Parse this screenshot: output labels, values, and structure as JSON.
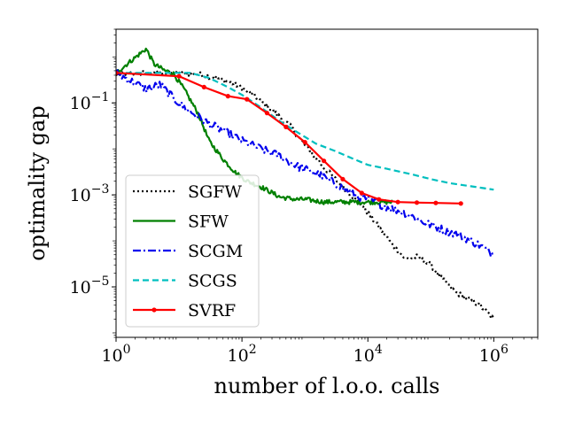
{
  "chart_data": {
    "type": "line",
    "title": "",
    "xlabel": "number of l.o.o. calls",
    "ylabel": "optimality gap",
    "xscale": "log",
    "yscale": "log",
    "xlim": [
      1,
      5000000
    ],
    "ylim": [
      8e-07,
      4
    ],
    "x_ticks": [
      {
        "value": 1,
        "base": "10",
        "exp": "0"
      },
      {
        "value": 100,
        "base": "10",
        "exp": "2"
      },
      {
        "value": 10000,
        "base": "10",
        "exp": "4"
      },
      {
        "value": 1000000,
        "base": "10",
        "exp": "6"
      }
    ],
    "y_ticks": [
      {
        "value": 0.1,
        "base": "10",
        "exp": "−1"
      },
      {
        "value": 0.001,
        "base": "10",
        "exp": "−3"
      },
      {
        "value": 1e-05,
        "base": "10",
        "exp": "−5"
      }
    ],
    "legend_position": "lower-left",
    "series": [
      {
        "name": "SGFW",
        "color": "#000000",
        "style": "dotted",
        "markers": false,
        "x": [
          1,
          3,
          10,
          20,
          40,
          80,
          150,
          300,
          600,
          1000,
          2000,
          4000,
          8000,
          15000,
          25000,
          40000,
          60000,
          100000,
          150000,
          250000,
          400000,
          600000,
          1000000
        ],
        "y": [
          0.4,
          0.45,
          0.45,
          0.42,
          0.35,
          0.25,
          0.15,
          0.07,
          0.03,
          0.012,
          0.004,
          0.0015,
          0.0006,
          0.0002,
          8e-05,
          4e-05,
          4.5e-05,
          3e-05,
          1.5e-05,
          7.5e-06,
          5.5e-06,
          4e-06,
          2e-06
        ]
      },
      {
        "name": "SFW",
        "color": "#008000",
        "style": "solid",
        "markers": false,
        "x": [
          1,
          3,
          4,
          6,
          8,
          12,
          20,
          30,
          50,
          80,
          120,
          200,
          400,
          700,
          1000,
          2000,
          4000,
          8000,
          15000,
          25000
        ],
        "y": [
          0.45,
          1.5,
          0.7,
          0.5,
          0.45,
          0.2,
          0.06,
          0.015,
          0.006,
          0.003,
          0.002,
          0.0015,
          0.0009,
          0.0008,
          0.0008,
          0.0007,
          0.0007,
          0.0007,
          0.0007,
          0.0007
        ]
      },
      {
        "name": "SCGM",
        "color": "#0000ee",
        "style": "dashdot",
        "markers": false,
        "x": [
          1,
          3,
          5,
          8,
          12,
          20,
          30,
          50,
          100,
          200,
          400,
          800,
          1500,
          3000,
          6000,
          10000,
          20000,
          40000,
          80000,
          150000,
          300000,
          600000,
          1000000
        ],
        "y": [
          0.45,
          0.2,
          0.25,
          0.13,
          0.08,
          0.05,
          0.035,
          0.025,
          0.015,
          0.01,
          0.007,
          0.004,
          0.003,
          0.0018,
          0.001,
          0.0008,
          0.00055,
          0.0004,
          0.00025,
          0.00018,
          0.00013,
          8e-05,
          5e-05
        ]
      },
      {
        "name": "SCGS",
        "color": "#00bfbf",
        "style": "dashed",
        "markers": false,
        "x": [
          1,
          5,
          15,
          30,
          60,
          100,
          200,
          400,
          800,
          1500,
          3000,
          6000,
          10000,
          20000,
          50000,
          100000,
          200000,
          500000,
          1000000
        ],
        "y": [
          0.45,
          0.45,
          0.45,
          0.35,
          0.22,
          0.15,
          0.08,
          0.04,
          0.022,
          0.013,
          0.009,
          0.006,
          0.0045,
          0.0037,
          0.0028,
          0.0022,
          0.0018,
          0.0015,
          0.0013
        ]
      },
      {
        "name": "SVRF",
        "color": "#ff0000",
        "style": "solid",
        "markers": true,
        "x": [
          1,
          10,
          25,
          60,
          120,
          250,
          500,
          1000,
          2000,
          4000,
          8000,
          15000,
          30000,
          60000,
          120000,
          300000
        ],
        "y": [
          0.45,
          0.38,
          0.22,
          0.14,
          0.12,
          0.06,
          0.03,
          0.014,
          0.0055,
          0.0022,
          0.0011,
          0.0008,
          0.0007,
          0.00068,
          0.00067,
          0.00065
        ]
      }
    ]
  }
}
